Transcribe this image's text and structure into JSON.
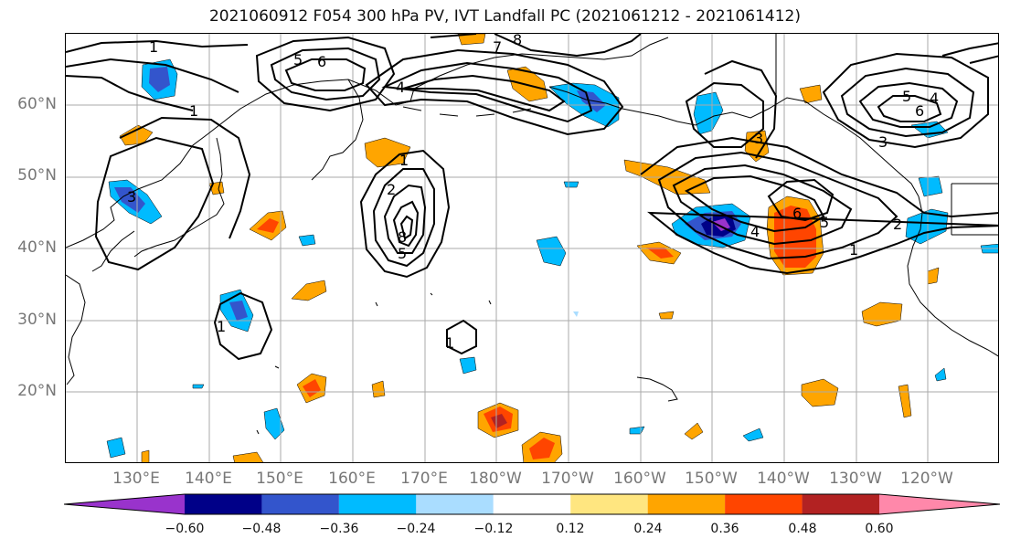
{
  "title": "2021060912 F054 300 hPa PV, IVT Landfall PC (2021061212 - 2021061412)",
  "lat_labels": [
    "60°N",
    "50°N",
    "40°N",
    "30°N",
    "20°N"
  ],
  "lon_labels": [
    "130°E",
    "140°E",
    "150°E",
    "160°E",
    "170°E",
    "180°W",
    "170°W",
    "160°W",
    "150°W",
    "140°W",
    "130°W",
    "120°W"
  ],
  "colorbar": {
    "colors": [
      "#9933cc",
      "#000088",
      "#3355cc",
      "#00bbff",
      "#aaddff",
      "#ffffff",
      "#ffe680",
      "#ffa500",
      "#ff4500",
      "#b22222",
      "#ff88aa"
    ],
    "labels": [
      "−0.60",
      "−0.48",
      "−0.36",
      "−0.24",
      "−0.12",
      "0.12",
      "0.24",
      "0.36",
      "0.48",
      "0.60"
    ]
  },
  "contour_labels": [
    "1",
    "5",
    "6",
    "7",
    "8",
    "4",
    "3",
    "2",
    "1",
    "8",
    "5",
    "1",
    "6",
    "5",
    "4",
    "1",
    "2",
    "3",
    "6",
    "5",
    "4",
    "3",
    "1",
    "1"
  ],
  "colors": {
    "grid": "#aaaaaa",
    "contour": "#000000",
    "coast": "#000000",
    "axis_text": "#777777"
  }
}
